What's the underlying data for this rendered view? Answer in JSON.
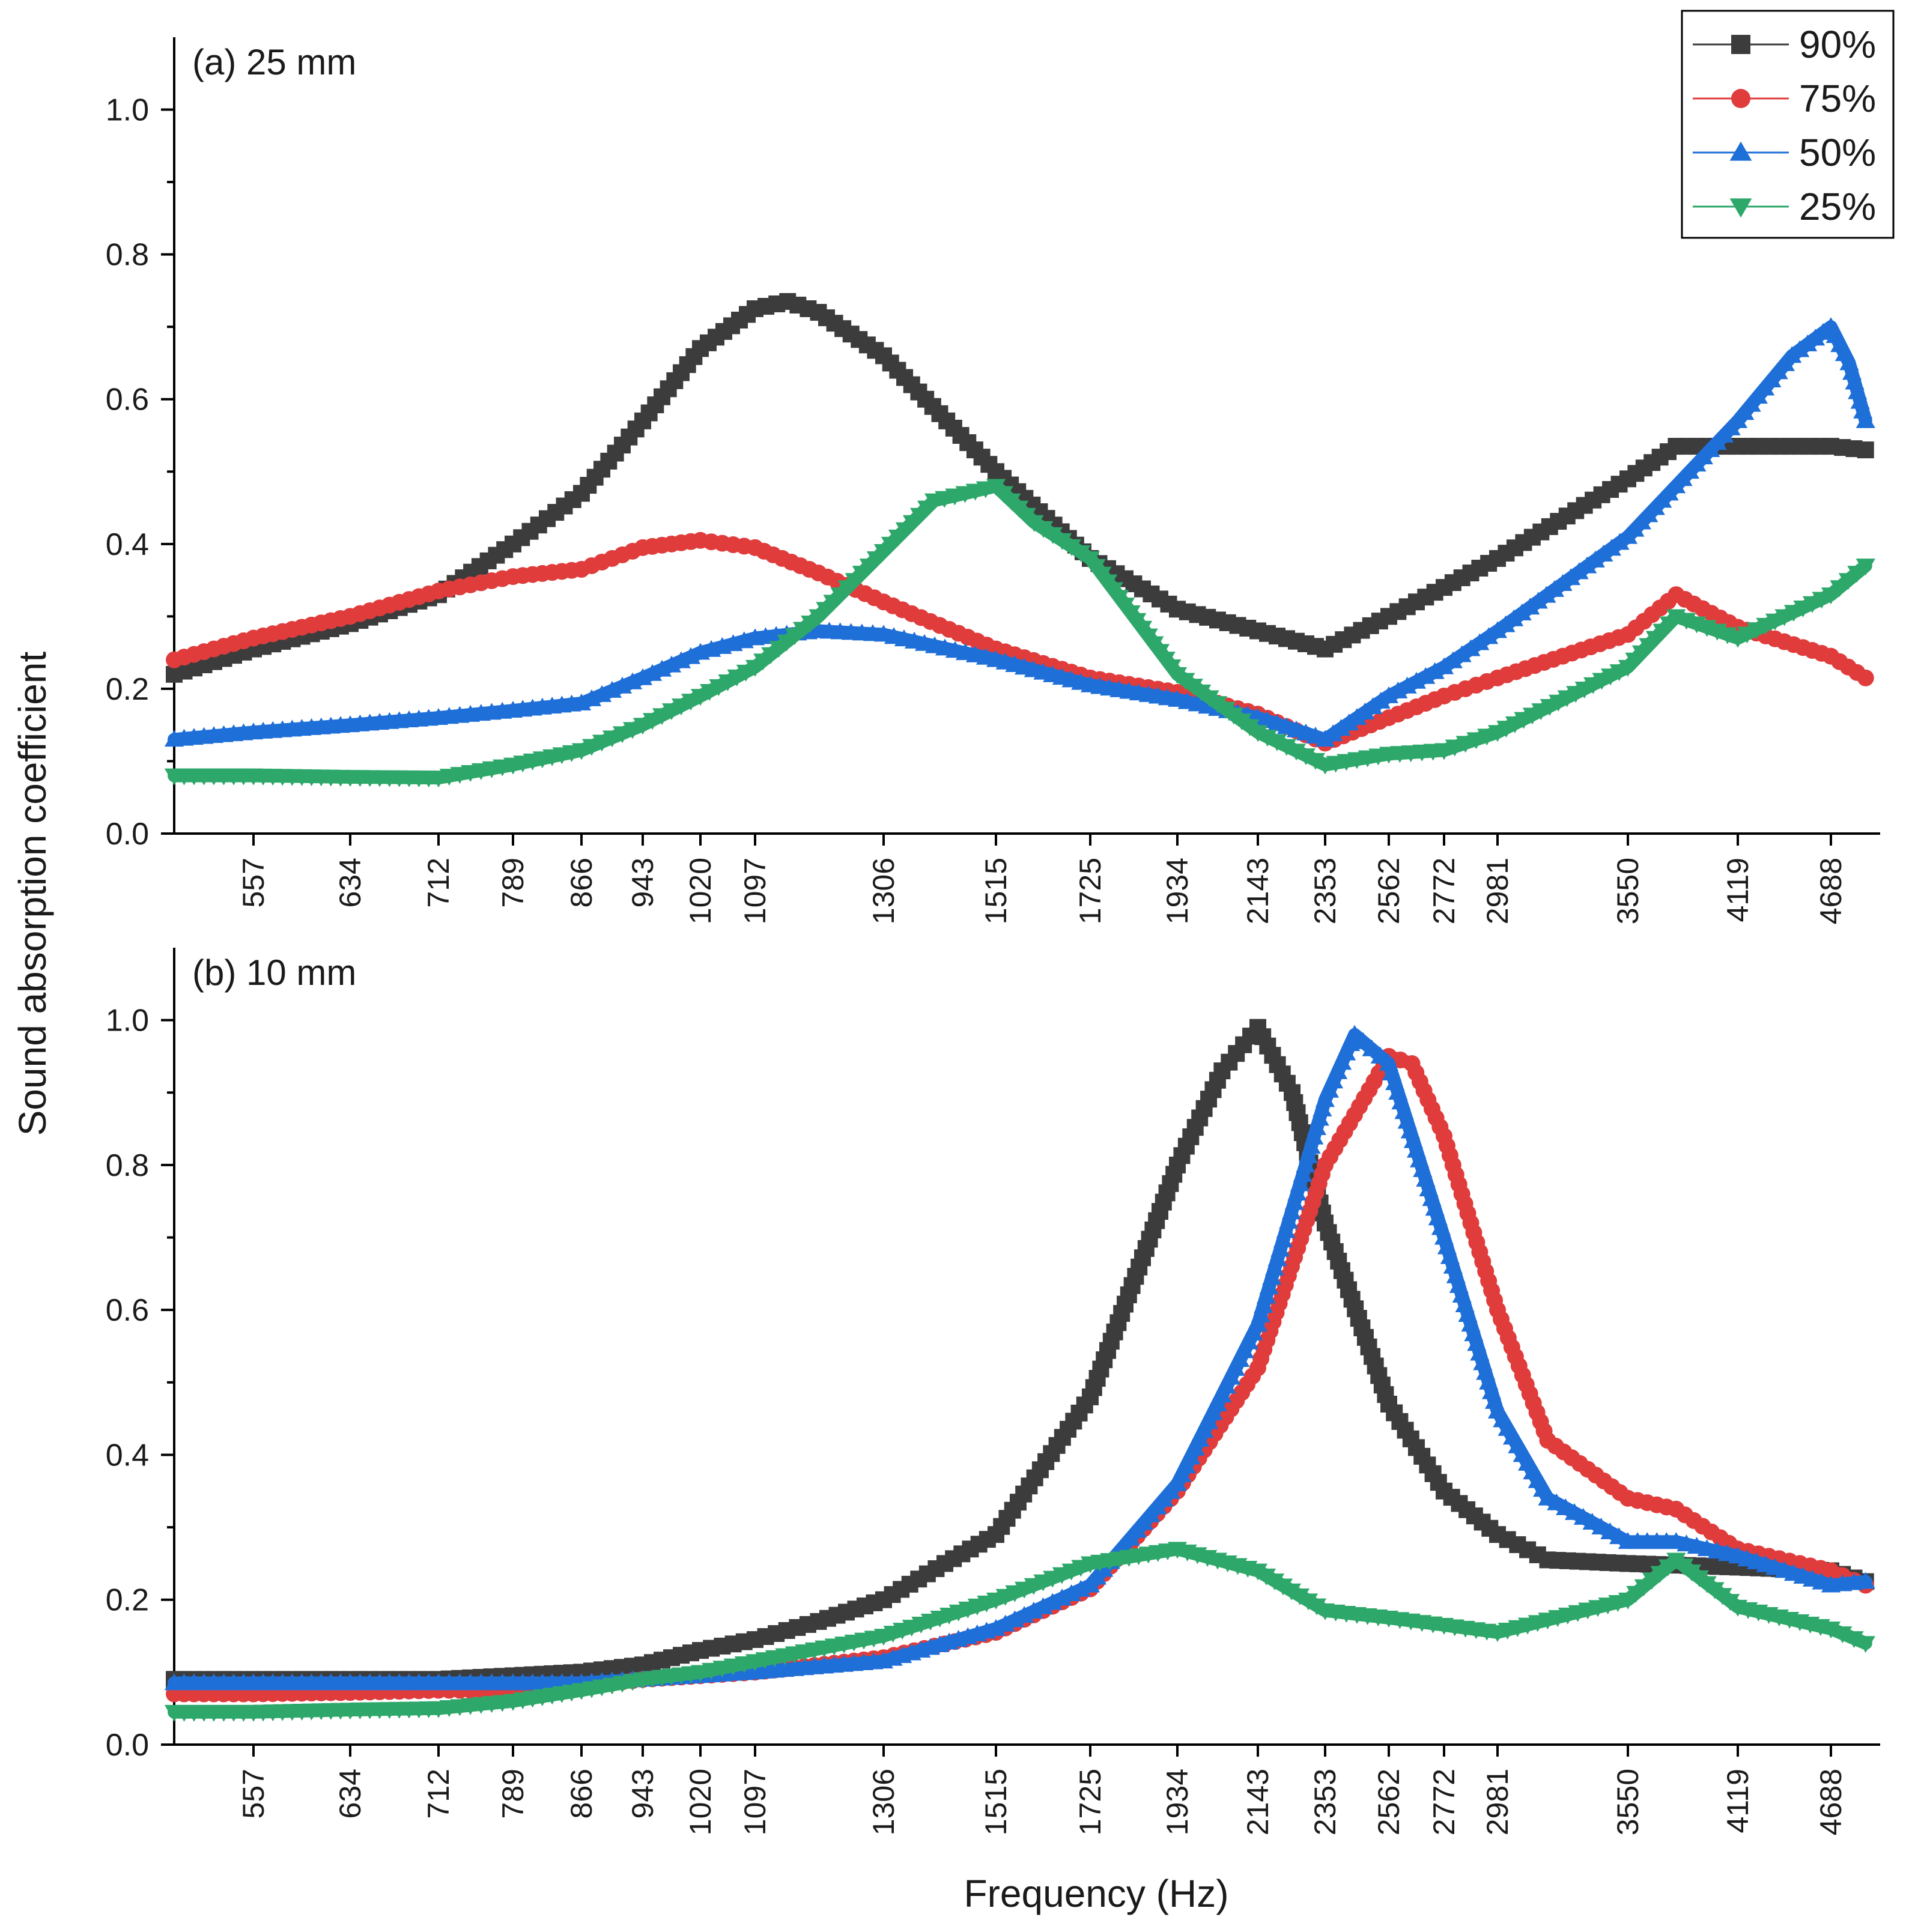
{
  "figure": {
    "ylabel": "Sound absorption coefficient",
    "xlabel": "Frequency (Hz)"
  },
  "legend": {
    "placement": "top-right",
    "items": [
      {
        "label": "90%",
        "color": "#3c3c3c",
        "marker": "square"
      },
      {
        "label": "75%",
        "color": "#e03c3c",
        "marker": "circle"
      },
      {
        "label": "50%",
        "color": "#1f6fd9",
        "marker": "triangle-up"
      },
      {
        "label": "25%",
        "color": "#2ea86a",
        "marker": "triangle-down"
      }
    ]
  },
  "chart_data": [
    {
      "type": "line",
      "title": "(a) 25 mm",
      "xlabel": "Frequency (Hz)",
      "ylabel": "Sound absorption coefficient",
      "x_ticks": [
        557,
        634,
        712,
        789,
        866,
        943,
        1020,
        1097,
        1306,
        1515,
        1725,
        1934,
        2143,
        2353,
        2562,
        2772,
        2981,
        3550,
        4119,
        4688
      ],
      "y_ticks": [
        "0.0",
        "0.2",
        "0.4",
        "0.6",
        "0.8",
        "1.0"
      ],
      "ylim": [
        0,
        1.1
      ],
      "grid": false,
      "series": [
        {
          "name": "90%",
          "color": "#3c3c3c",
          "points": [
            [
              480,
              0.22
            ],
            [
              557,
              0.255
            ],
            [
              634,
              0.29
            ],
            [
              712,
              0.33
            ],
            [
              789,
              0.4
            ],
            [
              866,
              0.47
            ],
            [
              943,
              0.57
            ],
            [
              1020,
              0.67
            ],
            [
              1097,
              0.725
            ],
            [
              1150,
              0.735
            ],
            [
              1200,
              0.72
            ],
            [
              1306,
              0.66
            ],
            [
              1515,
              0.5
            ],
            [
              1725,
              0.38
            ],
            [
              1934,
              0.31
            ],
            [
              2143,
              0.28
            ],
            [
              2353,
              0.255
            ],
            [
              2562,
              0.3
            ],
            [
              2772,
              0.34
            ],
            [
              2981,
              0.38
            ],
            [
              3550,
              0.49
            ],
            [
              3800,
              0.535
            ],
            [
              4119,
              0.535
            ],
            [
              4688,
              0.535
            ],
            [
              4900,
              0.53
            ]
          ]
        },
        {
          "name": "75%",
          "color": "#e03c3c",
          "points": [
            [
              480,
              0.24
            ],
            [
              557,
              0.27
            ],
            [
              634,
              0.3
            ],
            [
              712,
              0.335
            ],
            [
              789,
              0.355
            ],
            [
              866,
              0.365
            ],
            [
              943,
              0.395
            ],
            [
              1020,
              0.405
            ],
            [
              1097,
              0.395
            ],
            [
              1200,
              0.36
            ],
            [
              1306,
              0.32
            ],
            [
              1515,
              0.255
            ],
            [
              1725,
              0.215
            ],
            [
              1934,
              0.195
            ],
            [
              2143,
              0.165
            ],
            [
              2353,
              0.125
            ],
            [
              2562,
              0.16
            ],
            [
              2772,
              0.19
            ],
            [
              2981,
              0.215
            ],
            [
              3550,
              0.275
            ],
            [
              3800,
              0.33
            ],
            [
              4119,
              0.285
            ],
            [
              4688,
              0.245
            ],
            [
              4900,
              0.215
            ]
          ]
        },
        {
          "name": "50%",
          "color": "#1f6fd9",
          "points": [
            [
              480,
              0.13
            ],
            [
              557,
              0.14
            ],
            [
              634,
              0.15
            ],
            [
              712,
              0.16
            ],
            [
              789,
              0.17
            ],
            [
              866,
              0.18
            ],
            [
              943,
              0.215
            ],
            [
              1020,
              0.25
            ],
            [
              1097,
              0.27
            ],
            [
              1200,
              0.28
            ],
            [
              1306,
              0.275
            ],
            [
              1515,
              0.24
            ],
            [
              1725,
              0.205
            ],
            [
              1934,
              0.185
            ],
            [
              2143,
              0.16
            ],
            [
              2353,
              0.13
            ],
            [
              2562,
              0.19
            ],
            [
              2772,
              0.23
            ],
            [
              2981,
              0.28
            ],
            [
              3550,
              0.41
            ],
            [
              4119,
              0.57
            ],
            [
              4450,
              0.66
            ],
            [
              4688,
              0.7
            ],
            [
              4800,
              0.65
            ],
            [
              4900,
              0.57
            ]
          ]
        },
        {
          "name": "25%",
          "color": "#2ea86a",
          "points": [
            [
              480,
              0.08
            ],
            [
              557,
              0.08
            ],
            [
              634,
              0.078
            ],
            [
              712,
              0.077
            ],
            [
              789,
              0.095
            ],
            [
              866,
              0.115
            ],
            [
              943,
              0.15
            ],
            [
              1020,
              0.19
            ],
            [
              1097,
              0.23
            ],
            [
              1200,
              0.3
            ],
            [
              1306,
              0.39
            ],
            [
              1400,
              0.46
            ],
            [
              1515,
              0.48
            ],
            [
              1600,
              0.43
            ],
            [
              1725,
              0.38
            ],
            [
              1934,
              0.22
            ],
            [
              2143,
              0.14
            ],
            [
              2353,
              0.095
            ],
            [
              2562,
              0.11
            ],
            [
              2772,
              0.115
            ],
            [
              2981,
              0.14
            ],
            [
              3550,
              0.23
            ],
            [
              3800,
              0.3
            ],
            [
              4119,
              0.27
            ],
            [
              4688,
              0.33
            ],
            [
              4900,
              0.37
            ]
          ]
        }
      ]
    },
    {
      "type": "line",
      "title": "(b) 10 mm",
      "xlabel": "Frequency (Hz)",
      "ylabel": "Sound absorption coefficient",
      "x_ticks": [
        557,
        634,
        712,
        789,
        866,
        943,
        1020,
        1097,
        1306,
        1515,
        1725,
        1934,
        2143,
        2353,
        2562,
        2772,
        2981,
        3550,
        4119,
        4688
      ],
      "y_ticks": [
        "0.0",
        "0.2",
        "0.4",
        "0.6",
        "0.8",
        "1.0"
      ],
      "ylim": [
        0,
        1.1
      ],
      "grid": false,
      "series": [
        {
          "name": "90%",
          "color": "#3c3c3c",
          "points": [
            [
              480,
              0.09
            ],
            [
              557,
              0.09
            ],
            [
              634,
              0.09
            ],
            [
              712,
              0.09
            ],
            [
              789,
              0.095
            ],
            [
              866,
              0.1
            ],
            [
              943,
              0.11
            ],
            [
              1020,
              0.13
            ],
            [
              1097,
              0.145
            ],
            [
              1200,
              0.17
            ],
            [
              1306,
              0.2
            ],
            [
              1420,
              0.25
            ],
            [
              1515,
              0.29
            ],
            [
              1725,
              0.48
            ],
            [
              1934,
              0.8
            ],
            [
              2050,
              0.93
            ],
            [
              2143,
              0.99
            ],
            [
              2250,
              0.9
            ],
            [
              2353,
              0.72
            ],
            [
              2562,
              0.47
            ],
            [
              2772,
              0.35
            ],
            [
              2981,
              0.29
            ],
            [
              3200,
              0.255
            ],
            [
              3550,
              0.25
            ],
            [
              4119,
              0.245
            ],
            [
              4688,
              0.24
            ],
            [
              4900,
              0.225
            ]
          ]
        },
        {
          "name": "75%",
          "color": "#e03c3c",
          "points": [
            [
              480,
              0.07
            ],
            [
              557,
              0.07
            ],
            [
              634,
              0.072
            ],
            [
              712,
              0.075
            ],
            [
              789,
              0.075
            ],
            [
              866,
              0.08
            ],
            [
              943,
              0.09
            ],
            [
              1020,
              0.095
            ],
            [
              1097,
              0.1
            ],
            [
              1306,
              0.12
            ],
            [
              1515,
              0.155
            ],
            [
              1725,
              0.215
            ],
            [
              1934,
              0.35
            ],
            [
              2143,
              0.52
            ],
            [
              2353,
              0.8
            ],
            [
              2562,
              0.95
            ],
            [
              2650,
              0.94
            ],
            [
              2772,
              0.84
            ],
            [
              2981,
              0.6
            ],
            [
              3200,
              0.42
            ],
            [
              3550,
              0.34
            ],
            [
              3800,
              0.325
            ],
            [
              4119,
              0.27
            ],
            [
              4688,
              0.24
            ],
            [
              4900,
              0.22
            ]
          ]
        },
        {
          "name": "50%",
          "color": "#1f6fd9",
          "points": [
            [
              480,
              0.085
            ],
            [
              557,
              0.085
            ],
            [
              634,
              0.085
            ],
            [
              712,
              0.085
            ],
            [
              789,
              0.085
            ],
            [
              866,
              0.085
            ],
            [
              943,
              0.09
            ],
            [
              1020,
              0.095
            ],
            [
              1097,
              0.1
            ],
            [
              1306,
              0.115
            ],
            [
              1515,
              0.16
            ],
            [
              1725,
              0.22
            ],
            [
              1934,
              0.36
            ],
            [
              2143,
              0.58
            ],
            [
              2353,
              0.89
            ],
            [
              2450,
              0.98
            ],
            [
              2562,
              0.94
            ],
            [
              2772,
              0.7
            ],
            [
              2981,
              0.46
            ],
            [
              3200,
              0.34
            ],
            [
              3550,
              0.28
            ],
            [
              3800,
              0.28
            ],
            [
              4119,
              0.26
            ],
            [
              4688,
              0.22
            ],
            [
              4900,
              0.225
            ]
          ]
        },
        {
          "name": "25%",
          "color": "#2ea86a",
          "points": [
            [
              480,
              0.045
            ],
            [
              557,
              0.045
            ],
            [
              634,
              0.048
            ],
            [
              712,
              0.05
            ],
            [
              789,
              0.06
            ],
            [
              866,
              0.075
            ],
            [
              943,
              0.09
            ],
            [
              1020,
              0.1
            ],
            [
              1097,
              0.115
            ],
            [
              1306,
              0.15
            ],
            [
              1515,
              0.2
            ],
            [
              1725,
              0.25
            ],
            [
              1934,
              0.27
            ],
            [
              2143,
              0.24
            ],
            [
              2353,
              0.185
            ],
            [
              2562,
              0.175
            ],
            [
              2772,
              0.165
            ],
            [
              2981,
              0.155
            ],
            [
              3550,
              0.2
            ],
            [
              3800,
              0.255
            ],
            [
              4119,
              0.19
            ],
            [
              4688,
              0.16
            ],
            [
              4900,
              0.14
            ]
          ]
        }
      ]
    }
  ]
}
